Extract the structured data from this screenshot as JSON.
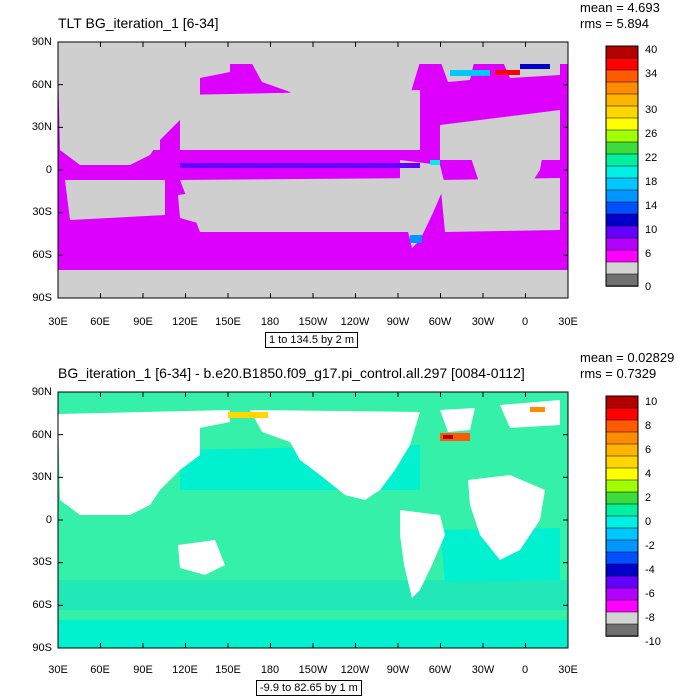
{
  "panels": [
    {
      "title": "TLT BG_iteration_1 [6-34]",
      "mean": "mean = 4.693",
      "rms": "rms = 5.894",
      "range": "1 to 134.5 by 2 m",
      "lat_labels": [
        "90N",
        "60N",
        "30N",
        "0",
        "30S",
        "60S",
        "90S"
      ],
      "lon_labels": [
        "30E",
        "60E",
        "90E",
        "120E",
        "150E",
        "180",
        "150W",
        "120W",
        "90W",
        "60W",
        "30W",
        "0",
        "30E"
      ],
      "colorbar_labels": [
        "40",
        "34",
        "30",
        "26",
        "22",
        "18",
        "14",
        "10",
        "6",
        "0"
      ],
      "colorbar_colors": [
        "#b40000",
        "#ff0000",
        "#ff5a00",
        "#ff8c00",
        "#ffb400",
        "#ffd700",
        "#ffff00",
        "#a0ff00",
        "#3cdc3c",
        "#00f0a0",
        "#00f0e6",
        "#00c8ff",
        "#0096ff",
        "#0050ff",
        "#0000c8",
        "#6400ff",
        "#b400ff",
        "#ff00ff",
        "#d3d3d3",
        "#707070"
      ],
      "land_color": "#cfcfcf",
      "ocean_color": "#dd00ff"
    },
    {
      "title": "BG_iteration_1 [6-34] - b.e20.B1850.f09_g17.pi_control.all.297 [0084-0112]",
      "mean": "mean = 0.02829",
      "rms": "rms = 0.7329",
      "range": "-9.9 to 82.65 by 1 m",
      "lat_labels": [
        "90N",
        "60N",
        "30N",
        "0",
        "30S",
        "60S",
        "90S"
      ],
      "lon_labels": [
        "30E",
        "60E",
        "90E",
        "120E",
        "150E",
        "180",
        "150W",
        "120W",
        "90W",
        "60W",
        "30W",
        "0",
        "30E"
      ],
      "colorbar_labels": [
        "10",
        "8",
        "6",
        "4",
        "2",
        "0",
        "-2",
        "-4",
        "-6",
        "-8",
        "-10"
      ],
      "colorbar_colors": [
        "#b40000",
        "#ff0000",
        "#ff5a00",
        "#ff8c00",
        "#ffb400",
        "#ffd700",
        "#ffff00",
        "#a0ff00",
        "#3cdc3c",
        "#00f0a0",
        "#00f0e6",
        "#00c8ff",
        "#0096ff",
        "#0050ff",
        "#0000c8",
        "#6400ff",
        "#b400ff",
        "#ff00ff",
        "#d3d3d3",
        "#707070"
      ],
      "land_color": "#ffffff",
      "ocean_color": "#35f0a8"
    }
  ]
}
